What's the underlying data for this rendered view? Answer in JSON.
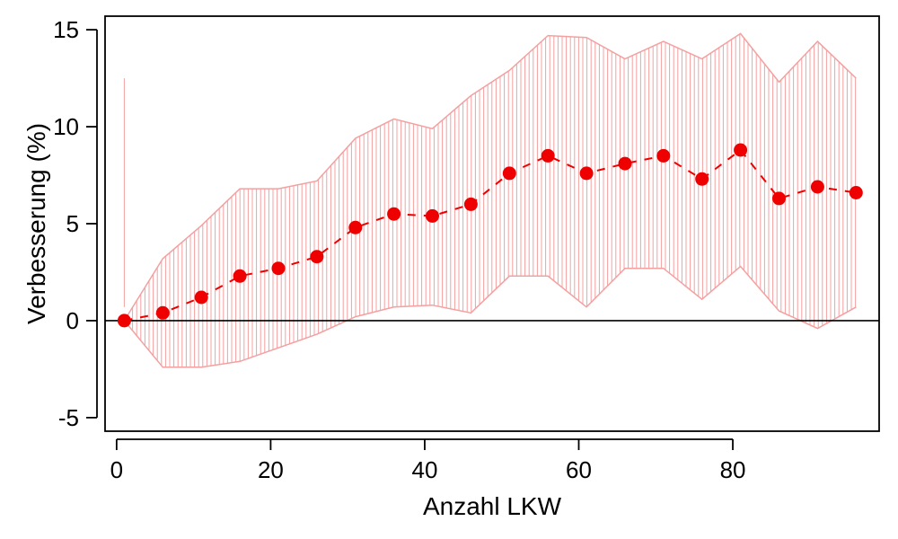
{
  "chart_data": {
    "type": "line",
    "title": "",
    "xlabel": "Anzahl LKW",
    "ylabel": "Verbesserung (%)",
    "xlim": [
      -1.5,
      99
    ],
    "ylim": [
      -5.7,
      15.7
    ],
    "x_ticks": [
      0,
      20,
      40,
      60,
      80
    ],
    "y_ticks": [
      -5,
      0,
      5,
      10,
      15
    ],
    "reference_line_y": 0,
    "grid": false,
    "legend": "none",
    "x": [
      1,
      6,
      11,
      16,
      21,
      26,
      31,
      36,
      41,
      46,
      51,
      56,
      61,
      66,
      71,
      76,
      81,
      86,
      91,
      96
    ],
    "series": [
      {
        "values": [
          0,
          0.4,
          1.2,
          2.3,
          2.7,
          3.3,
          4.8,
          5.5,
          5.4,
          6.0,
          7.6,
          8.5,
          7.6,
          8.1,
          8.5,
          7.3,
          8.8,
          6.3,
          6.9,
          6.6
        ],
        "color": "#ee0000",
        "line_style": "dashed"
      }
    ],
    "band": {
      "lower": [
        0,
        -2.4,
        -2.4,
        -2.1,
        -1.4,
        -0.7,
        0.2,
        0.7,
        0.8,
        0.4,
        2.3,
        2.3,
        0.7,
        2.7,
        2.7,
        1.1,
        2.8,
        0.5,
        -0.4,
        0.7
      ],
      "upper": [
        0,
        3.2,
        4.9,
        6.8,
        6.8,
        7.2,
        9.4,
        10.4,
        9.9,
        11.6,
        12.9,
        14.7,
        14.6,
        13.5,
        14.4,
        13.5,
        14.8,
        12.3,
        14.4,
        12.5
      ],
      "color": "#f4a0a0"
    }
  }
}
